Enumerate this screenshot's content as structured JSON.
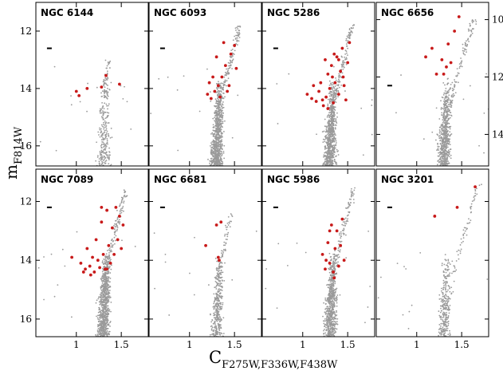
{
  "figure": {
    "ylabel": "m",
    "ylabel_sub": "F814W",
    "xlabel": "C",
    "xlabel_sub": "F275W,F336W,F438W"
  },
  "colors": {
    "ms": "#9a9a9a",
    "mpop": "#c81a1a",
    "frame": "#000000"
  },
  "chart_data": [
    {
      "type": "scatter",
      "title": "NGC 6144",
      "row": 0,
      "col": 0,
      "xlim": [
        0.55,
        1.8
      ],
      "ylim": [
        16.7,
        11.0
      ],
      "xticks": [
        1,
        1.5
      ],
      "yticks": [
        12,
        14,
        16
      ],
      "ytick_side": "left",
      "xtick_labels": false,
      "errbar": [
        0.7,
        12.6
      ],
      "giant_branch": [
        [
          1.28,
          15.0
        ],
        [
          1.3,
          14.2
        ],
        [
          1.33,
          13.6
        ],
        [
          1.36,
          13.0
        ]
      ],
      "red": [
        [
          1.0,
          14.1
        ],
        [
          1.03,
          14.25
        ],
        [
          1.12,
          14.0
        ],
        [
          1.28,
          13.95
        ],
        [
          1.33,
          13.55
        ],
        [
          1.48,
          13.85
        ]
      ],
      "density": 0.3
    },
    {
      "type": "scatter",
      "title": "NGC 6093",
      "row": 0,
      "col": 1,
      "xlim": [
        0.55,
        1.8
      ],
      "ylim": [
        16.7,
        11.0
      ],
      "xticks": [
        1,
        1.5
      ],
      "yticks": [
        12,
        14,
        16
      ],
      "ytick_side": "none",
      "xtick_labels": false,
      "errbar": [
        0.7,
        12.6
      ],
      "giant_branch": [
        [
          1.28,
          15.5
        ],
        [
          1.35,
          14.3
        ],
        [
          1.42,
          13.5
        ],
        [
          1.5,
          12.6
        ],
        [
          1.55,
          11.8
        ]
      ],
      "red": [
        [
          1.2,
          14.2
        ],
        [
          1.24,
          14.35
        ],
        [
          1.28,
          14.1
        ],
        [
          1.32,
          13.9
        ],
        [
          1.36,
          13.6
        ],
        [
          1.4,
          13.2
        ],
        [
          1.44,
          13.9
        ],
        [
          1.46,
          12.8
        ],
        [
          1.5,
          12.5
        ],
        [
          1.38,
          12.4
        ],
        [
          1.26,
          13.6
        ],
        [
          1.34,
          14.3
        ],
        [
          1.52,
          13.3
        ],
        [
          1.3,
          12.9
        ],
        [
          1.42,
          14.1
        ],
        [
          1.22,
          13.8
        ]
      ],
      "density": 1.0
    },
    {
      "type": "scatter",
      "title": "NGC 5286",
      "row": 0,
      "col": 2,
      "xlim": [
        0.55,
        1.8
      ],
      "ylim": [
        16.7,
        11.0
      ],
      "xticks": [
        1,
        1.5
      ],
      "yticks": [
        12,
        14,
        16
      ],
      "ytick_side": "none",
      "xtick_labels": false,
      "errbar": [
        0.7,
        12.6
      ],
      "giant_branch": [
        [
          1.3,
          15.5
        ],
        [
          1.36,
          14.4
        ],
        [
          1.42,
          13.5
        ],
        [
          1.5,
          12.5
        ],
        [
          1.55,
          11.8
        ]
      ],
      "red": [
        [
          1.05,
          14.2
        ],
        [
          1.1,
          14.35
        ],
        [
          1.15,
          14.45
        ],
        [
          1.18,
          14.1
        ],
        [
          1.2,
          13.8
        ],
        [
          1.23,
          14.6
        ],
        [
          1.26,
          14.3
        ],
        [
          1.28,
          13.5
        ],
        [
          1.3,
          14.0
        ],
        [
          1.32,
          13.2
        ],
        [
          1.34,
          14.5
        ],
        [
          1.36,
          13.8
        ],
        [
          1.38,
          12.9
        ],
        [
          1.4,
          14.2
        ],
        [
          1.42,
          13.4
        ],
        [
          1.44,
          12.6
        ],
        [
          1.46,
          13.9
        ],
        [
          1.48,
          14.4
        ],
        [
          1.5,
          13.1
        ],
        [
          1.52,
          12.4
        ],
        [
          1.25,
          13.0
        ],
        [
          1.35,
          12.8
        ],
        [
          1.45,
          13.6
        ],
        [
          1.22,
          14.4
        ],
        [
          1.33,
          13.6
        ],
        [
          1.28,
          14.7
        ],
        [
          1.4,
          13.0
        ],
        [
          1.12,
          13.9
        ]
      ],
      "density": 1.0
    },
    {
      "type": "scatter",
      "title": "NGC 6656",
      "row": 0,
      "col": 3,
      "xlim": [
        0.55,
        1.8
      ],
      "ylim": [
        16.7,
        11.0
      ],
      "xticks": [
        1,
        1.5
      ],
      "yticks": [
        10,
        12,
        14
      ],
      "yticks_value": [
        11.6,
        13.6,
        15.6
      ],
      "ytick_side": "right",
      "xtick_labels": false,
      "errbar": [
        0.7,
        13.9
      ],
      "giant_branch": [
        [
          1.3,
          15.6
        ],
        [
          1.38,
          14.5
        ],
        [
          1.46,
          13.5
        ],
        [
          1.56,
          12.4
        ],
        [
          1.64,
          11.6
        ]
      ],
      "red": [
        [
          1.1,
          12.9
        ],
        [
          1.17,
          12.6
        ],
        [
          1.22,
          13.5
        ],
        [
          1.28,
          13.0
        ],
        [
          1.3,
          13.5
        ],
        [
          1.33,
          13.25
        ],
        [
          1.35,
          12.45
        ],
        [
          1.42,
          12.0
        ],
        [
          1.47,
          11.5
        ],
        [
          1.38,
          13.1
        ]
      ],
      "density": 0.75
    },
    {
      "type": "scatter",
      "title": "NGC 7089",
      "row": 1,
      "col": 0,
      "xlim": [
        0.55,
        1.8
      ],
      "ylim": [
        16.6,
        10.9
      ],
      "xticks": [
        1,
        1.5
      ],
      "yticks": [
        12,
        14,
        16
      ],
      "ytick_side": "left",
      "xtick_labels": true,
      "errbar": [
        0.7,
        12.2
      ],
      "giant_branch": [
        [
          1.25,
          15.5
        ],
        [
          1.32,
          14.4
        ],
        [
          1.4,
          13.4
        ],
        [
          1.48,
          12.5
        ],
        [
          1.55,
          11.6
        ]
      ],
      "red": [
        [
          0.95,
          13.9
        ],
        [
          1.05,
          14.1
        ],
        [
          1.1,
          14.3
        ],
        [
          1.12,
          13.6
        ],
        [
          1.15,
          14.2
        ],
        [
          1.18,
          13.9
        ],
        [
          1.2,
          14.4
        ],
        [
          1.22,
          13.3
        ],
        [
          1.24,
          14.0
        ],
        [
          1.26,
          14.25
        ],
        [
          1.28,
          12.7
        ],
        [
          1.3,
          13.8
        ],
        [
          1.32,
          14.3
        ],
        [
          1.34,
          12.3
        ],
        [
          1.36,
          13.5
        ],
        [
          1.38,
          14.1
        ],
        [
          1.4,
          12.9
        ],
        [
          1.42,
          13.8
        ],
        [
          1.44,
          12.2
        ],
        [
          1.46,
          13.3
        ],
        [
          1.48,
          12.5
        ],
        [
          1.5,
          13.6
        ],
        [
          1.52,
          12.8
        ],
        [
          1.28,
          12.2
        ],
        [
          1.16,
          14.5
        ],
        [
          1.34,
          14.3
        ],
        [
          1.08,
          14.4
        ]
      ],
      "density": 1.0
    },
    {
      "type": "scatter",
      "title": "NGC 6681",
      "row": 1,
      "col": 1,
      "xlim": [
        0.55,
        1.8
      ],
      "ylim": [
        16.6,
        10.9
      ],
      "xticks": [
        1,
        1.5
      ],
      "yticks": [
        12,
        14,
        16
      ],
      "ytick_side": "none",
      "xtick_labels": true,
      "errbar": [
        0.7,
        12.2
      ],
      "giant_branch": [
        [
          1.28,
          15.5
        ],
        [
          1.34,
          14.4
        ],
        [
          1.4,
          13.4
        ],
        [
          1.46,
          12.4
        ]
      ],
      "red": [
        [
          1.18,
          13.5
        ],
        [
          1.3,
          12.8
        ],
        [
          1.32,
          13.9
        ],
        [
          1.35,
          12.7
        ],
        [
          1.33,
          14.0
        ]
      ],
      "density": 0.45
    },
    {
      "type": "scatter",
      "title": "NGC 5986",
      "row": 1,
      "col": 2,
      "xlim": [
        0.55,
        1.8
      ],
      "ylim": [
        16.6,
        10.9
      ],
      "xticks": [
        1,
        1.5
      ],
      "yticks": [
        12,
        14,
        16
      ],
      "ytick_side": "none",
      "xtick_labels": true,
      "errbar": [
        0.7,
        12.2
      ],
      "giant_branch": [
        [
          1.28,
          15.5
        ],
        [
          1.34,
          14.4
        ],
        [
          1.42,
          13.4
        ],
        [
          1.5,
          12.4
        ],
        [
          1.56,
          11.6
        ]
      ],
      "red": [
        [
          1.22,
          13.8
        ],
        [
          1.25,
          14.3
        ],
        [
          1.28,
          13.4
        ],
        [
          1.3,
          14.1
        ],
        [
          1.32,
          12.8
        ],
        [
          1.34,
          14.4
        ],
        [
          1.36,
          13.6
        ],
        [
          1.38,
          13.0
        ],
        [
          1.4,
          14.2
        ],
        [
          1.42,
          13.5
        ],
        [
          1.44,
          12.6
        ],
        [
          1.3,
          13.0
        ],
        [
          1.35,
          14.6
        ],
        [
          1.26,
          14.0
        ],
        [
          1.46,
          14.0
        ]
      ],
      "density": 0.85
    },
    {
      "type": "scatter",
      "title": "NGC 3201",
      "row": 1,
      "col": 3,
      "xlim": [
        0.55,
        1.8
      ],
      "ylim": [
        16.6,
        10.9
      ],
      "xticks": [
        1,
        1.5
      ],
      "yticks": [
        12,
        14,
        16
      ],
      "ytick_side": "none",
      "xtick_labels": true,
      "errbar": [
        0.7,
        12.2
      ],
      "giant_branch": [
        [
          1.3,
          16.3
        ],
        [
          1.4,
          14.6
        ],
        [
          1.5,
          13.4
        ],
        [
          1.6,
          12.3
        ],
        [
          1.7,
          11.4
        ]
      ],
      "red": [
        [
          1.2,
          12.5
        ],
        [
          1.45,
          12.2
        ],
        [
          1.65,
          11.5
        ]
      ],
      "density": 0.35
    }
  ]
}
